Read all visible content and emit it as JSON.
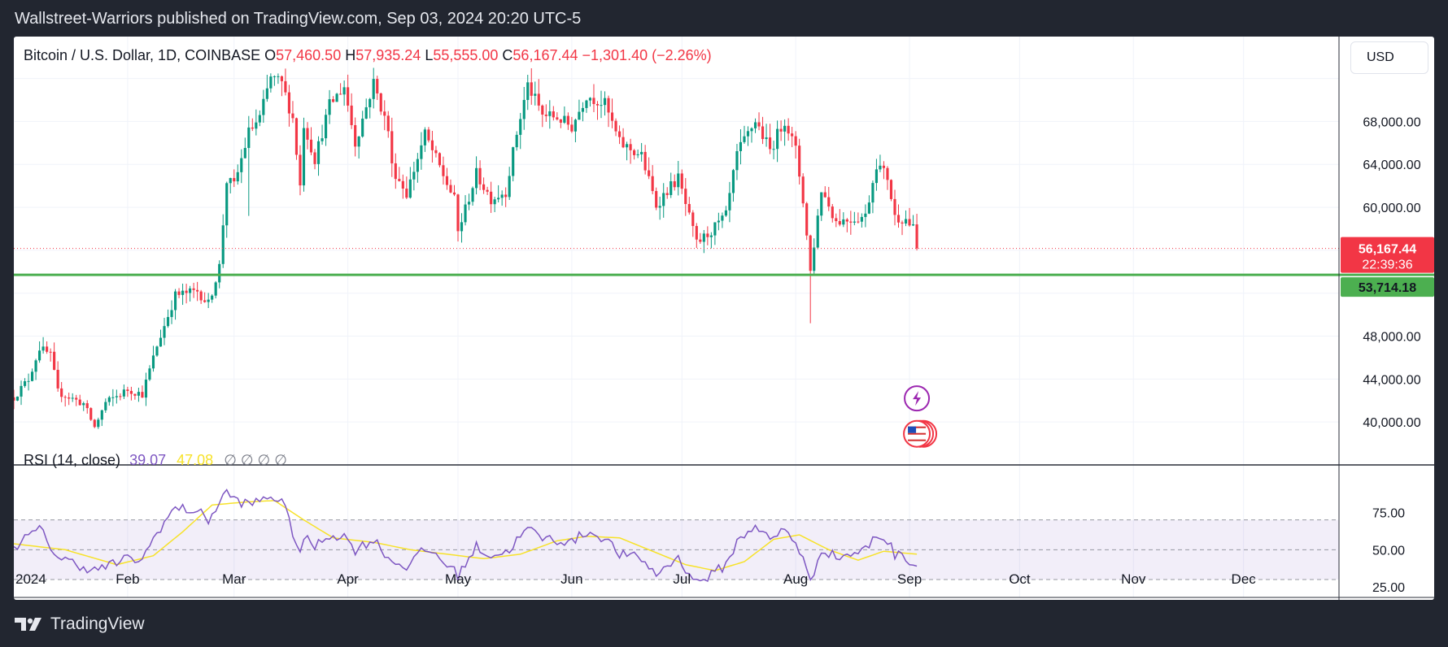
{
  "header": {
    "text": "Wallstreet-Warriors published on TradingView.com, Sep 03, 2024 20:20 UTC-5"
  },
  "legend": {
    "symbol": "Bitcoin / U.S. Dollar, 1D, COINBASE",
    "o_label": "O",
    "o_value": "57,460.50",
    "h_label": "H",
    "h_value": "57,935.24",
    "l_label": "L",
    "l_value": "55,555.00",
    "c_label": "C",
    "c_value": "56,167.44",
    "change": "−1,301.40 (−2.26%)"
  },
  "currency_button": "USD",
  "price_badge": {
    "price": "56,167.44",
    "countdown": "22:39:36"
  },
  "level_badge": {
    "price": "53,714.18"
  },
  "rsi_legend": {
    "title": "RSI (14, close)",
    "rsi": "39.07",
    "ma": "47.08",
    "na": "∅ ∅ ∅ ∅"
  },
  "footer": {
    "brand": "TradingView"
  },
  "colors": {
    "up": "#089981",
    "down": "#f23645",
    "level": "#4caf50",
    "rsi": "#7e57c2",
    "rsi_ma": "#f7e229"
  },
  "chart_data": [
    {
      "type": "candlestick",
      "title": "Bitcoin / U.S. Dollar, 1D, COINBASE",
      "ylim": [
        36000,
        72500
      ],
      "y_ticks": [
        40000,
        44000,
        48000,
        52000,
        56000,
        60000,
        64000,
        68000,
        72000
      ],
      "y_tick_labels": [
        "40,000.00",
        "44,000.00",
        "48,000.00",
        "",
        "",
        "60,000.00",
        "64,000.00",
        "68,000.00",
        ""
      ],
      "x_start": "2024-01-01",
      "x_end": "2024-12-27",
      "x_tick_labels": [
        "2024",
        "Feb",
        "Mar",
        "Apr",
        "May",
        "Jun",
        "Jul",
        "Aug",
        "Sep",
        "Oct",
        "Nov",
        "Dec"
      ],
      "x_tick_dates": [
        "2024-01-01",
        "2024-02-01",
        "2024-03-01",
        "2024-04-01",
        "2024-05-01",
        "2024-06-01",
        "2024-07-01",
        "2024-08-01",
        "2024-09-01",
        "2024-10-01",
        "2024-11-01",
        "2024-12-01"
      ],
      "horizontal_level": 53714.18,
      "last_price": 56167.44,
      "anchors": [
        [
          "2024-01-01",
          42300
        ],
        [
          "2024-01-05",
          44000
        ],
        [
          "2024-01-08",
          46900
        ],
        [
          "2024-01-11",
          46200
        ],
        [
          "2024-01-13",
          42800
        ],
        [
          "2024-01-20",
          41700
        ],
        [
          "2024-01-23",
          39500
        ],
        [
          "2024-01-26",
          41800
        ],
        [
          "2024-02-01",
          43000
        ],
        [
          "2024-02-05",
          42600
        ],
        [
          "2024-02-09",
          47100
        ],
        [
          "2024-02-14",
          51800
        ],
        [
          "2024-02-20",
          52200
        ],
        [
          "2024-02-23",
          51000
        ],
        [
          "2024-02-26",
          54500
        ],
        [
          "2024-02-28",
          62500
        ],
        [
          "2024-03-01",
          62000
        ],
        [
          "2024-03-05",
          67000
        ],
        [
          "2024-03-08",
          68300
        ],
        [
          "2024-03-11",
          72100
        ],
        [
          "2024-03-14",
          71500
        ],
        [
          "2024-03-17",
          68300
        ],
        [
          "2024-03-19",
          62000
        ],
        [
          "2024-03-20",
          67800
        ],
        [
          "2024-03-23",
          64500
        ],
        [
          "2024-03-27",
          69500
        ],
        [
          "2024-03-31",
          71300
        ],
        [
          "2024-04-03",
          66000
        ],
        [
          "2024-04-08",
          71600
        ],
        [
          "2024-04-12",
          67200
        ],
        [
          "2024-04-13",
          63800
        ],
        [
          "2024-04-17",
          61300
        ],
        [
          "2024-04-22",
          66800
        ],
        [
          "2024-04-25",
          64500
        ],
        [
          "2024-04-30",
          60700
        ],
        [
          "2024-05-01",
          57700
        ],
        [
          "2024-05-06",
          63100
        ],
        [
          "2024-05-10",
          60800
        ],
        [
          "2024-05-14",
          61500
        ],
        [
          "2024-05-17",
          66900
        ],
        [
          "2024-05-20",
          71400
        ],
        [
          "2024-05-24",
          68600
        ],
        [
          "2024-05-28",
          68400
        ],
        [
          "2024-06-01",
          67500
        ],
        [
          "2024-06-05",
          70500
        ],
        [
          "2024-06-10",
          69600
        ],
        [
          "2024-06-14",
          66000
        ],
        [
          "2024-06-20",
          64800
        ],
        [
          "2024-06-24",
          60200
        ],
        [
          "2024-06-27",
          61600
        ],
        [
          "2024-06-30",
          62700
        ],
        [
          "2024-07-05",
          56600
        ],
        [
          "2024-07-09",
          57800
        ],
        [
          "2024-07-13",
          59200
        ],
        [
          "2024-07-16",
          64900
        ],
        [
          "2024-07-21",
          68100
        ],
        [
          "2024-07-25",
          65300
        ],
        [
          "2024-07-29",
          68200
        ],
        [
          "2024-08-01",
          65300
        ],
        [
          "2024-08-03",
          60700
        ],
        [
          "2024-08-05",
          54000
        ],
        [
          "2024-08-08",
          61700
        ],
        [
          "2024-08-12",
          58700
        ],
        [
          "2024-08-16",
          58900
        ],
        [
          "2024-08-20",
          59200
        ],
        [
          "2024-08-23",
          64100
        ],
        [
          "2024-08-26",
          62800
        ],
        [
          "2024-08-28",
          59100
        ],
        [
          "2024-08-31",
          58900
        ],
        [
          "2024-09-02",
          58000
        ],
        [
          "2024-09-03",
          56167
        ]
      ]
    },
    {
      "type": "line",
      "title": "RSI (14, close)",
      "ylim": [
        18,
        96
      ],
      "y_ticks": [
        25,
        50,
        75
      ],
      "y_tick_labels": [
        "25.00",
        "50.00",
        "75.00"
      ],
      "band": [
        30,
        70
      ],
      "series": [
        {
          "name": "RSI",
          "key": "rsi",
          "anchors": [
            [
              "2024-01-01",
              52
            ],
            [
              "2024-01-08",
              64
            ],
            [
              "2024-01-13",
              45
            ],
            [
              "2024-01-23",
              36
            ],
            [
              "2024-02-01",
              44
            ],
            [
              "2024-02-05",
              43
            ],
            [
              "2024-02-09",
              62
            ],
            [
              "2024-02-14",
              78
            ],
            [
              "2024-02-20",
              76
            ],
            [
              "2024-02-23",
              70
            ],
            [
              "2024-02-28",
              89
            ],
            [
              "2024-03-01",
              84
            ],
            [
              "2024-03-05",
              80
            ],
            [
              "2024-03-11",
              86
            ],
            [
              "2024-03-14",
              83
            ],
            [
              "2024-03-19",
              48
            ],
            [
              "2024-03-20",
              58
            ],
            [
              "2024-03-23",
              52
            ],
            [
              "2024-03-27",
              60
            ],
            [
              "2024-03-31",
              59
            ],
            [
              "2024-04-03",
              50
            ],
            [
              "2024-04-08",
              57
            ],
            [
              "2024-04-13",
              42
            ],
            [
              "2024-04-17",
              39
            ],
            [
              "2024-04-22",
              50
            ],
            [
              "2024-04-25",
              47
            ],
            [
              "2024-05-01",
              33
            ],
            [
              "2024-05-06",
              52
            ],
            [
              "2024-05-10",
              46
            ],
            [
              "2024-05-14",
              48
            ],
            [
              "2024-05-20",
              64
            ],
            [
              "2024-05-24",
              58
            ],
            [
              "2024-06-01",
              55
            ],
            [
              "2024-06-05",
              62
            ],
            [
              "2024-06-10",
              58
            ],
            [
              "2024-06-14",
              47
            ],
            [
              "2024-06-20",
              44
            ],
            [
              "2024-06-24",
              33
            ],
            [
              "2024-06-27",
              40
            ],
            [
              "2024-06-30",
              44
            ],
            [
              "2024-07-05",
              28
            ],
            [
              "2024-07-09",
              33
            ],
            [
              "2024-07-13",
              40
            ],
            [
              "2024-07-16",
              55
            ],
            [
              "2024-07-21",
              67
            ],
            [
              "2024-07-25",
              56
            ],
            [
              "2024-07-29",
              64
            ],
            [
              "2024-08-01",
              55
            ],
            [
              "2024-08-03",
              44
            ],
            [
              "2024-08-05",
              27
            ],
            [
              "2024-08-08",
              51
            ],
            [
              "2024-08-12",
              45
            ],
            [
              "2024-08-16",
              47
            ],
            [
              "2024-08-20",
              50
            ],
            [
              "2024-08-23",
              60
            ],
            [
              "2024-08-26",
              56
            ],
            [
              "2024-08-28",
              47
            ],
            [
              "2024-08-31",
              45
            ],
            [
              "2024-09-03",
              39
            ]
          ]
        },
        {
          "name": "RSI-based MA",
          "key": "ma",
          "anchors": [
            [
              "2024-01-01",
              54
            ],
            [
              "2024-01-15",
              50
            ],
            [
              "2024-01-29",
              40
            ],
            [
              "2024-02-08",
              46
            ],
            [
              "2024-02-16",
              62
            ],
            [
              "2024-02-24",
              80
            ],
            [
              "2024-03-04",
              82
            ],
            [
              "2024-03-12",
              83
            ],
            [
              "2024-03-20",
              70
            ],
            [
              "2024-03-28",
              58
            ],
            [
              "2024-04-08",
              55
            ],
            [
              "2024-04-18",
              50
            ],
            [
              "2024-04-28",
              47
            ],
            [
              "2024-05-08",
              44
            ],
            [
              "2024-05-18",
              47
            ],
            [
              "2024-05-28",
              56
            ],
            [
              "2024-06-05",
              59
            ],
            [
              "2024-06-14",
              58
            ],
            [
              "2024-06-24",
              48
            ],
            [
              "2024-07-02",
              40
            ],
            [
              "2024-07-10",
              36
            ],
            [
              "2024-07-18",
              42
            ],
            [
              "2024-07-26",
              57
            ],
            [
              "2024-08-02",
              60
            ],
            [
              "2024-08-10",
              50
            ],
            [
              "2024-08-18",
              43
            ],
            [
              "2024-08-25",
              49
            ],
            [
              "2024-09-03",
              47
            ]
          ]
        }
      ]
    }
  ]
}
